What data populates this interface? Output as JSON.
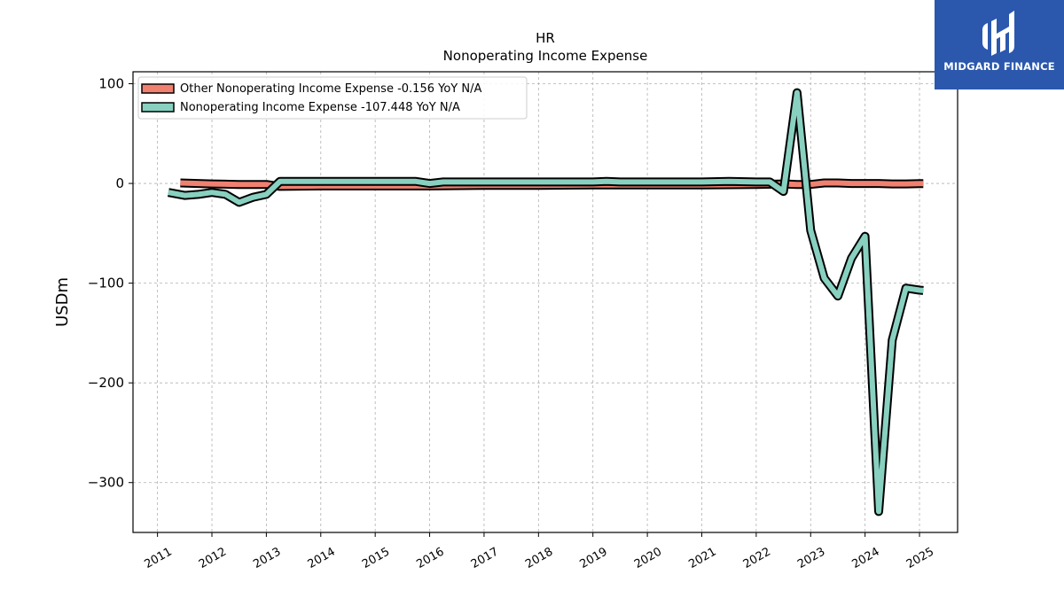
{
  "brand": {
    "name": "MIDGARD FINANCE",
    "bg_color": "#2b58ad"
  },
  "chart_data": {
    "type": "line",
    "title": "HR",
    "subtitle": "Nonoperating Income Expense",
    "ylabel": "USDm",
    "xlabel": "",
    "xlim": [
      2010.55,
      2025.7
    ],
    "ylim": [
      -350,
      112
    ],
    "yticks": [
      100,
      0,
      -100,
      -200,
      -300
    ],
    "ytick_labels": [
      "100",
      "0",
      "−100",
      "−200",
      "−300"
    ],
    "xticks": [
      2011,
      2012,
      2013,
      2014,
      2015,
      2016,
      2017,
      2018,
      2019,
      2020,
      2021,
      2022,
      2023,
      2024,
      2025
    ],
    "xtick_labels": [
      "2011",
      "2012",
      "2013",
      "2014",
      "2015",
      "2016",
      "2017",
      "2018",
      "2019",
      "2020",
      "2021",
      "2022",
      "2023",
      "2024",
      "2025"
    ],
    "grid": true,
    "legend_position": "top-left",
    "series": [
      {
        "name": "Other Nonoperating Income Expense",
        "legend_label": "Other Nonoperating Income Expense  -0.156 YoY N/A",
        "color": "#f08070",
        "x": [
          2011.42,
          2012.0,
          2012.5,
          2013.0,
          2013.25,
          2014.0,
          2015.0,
          2016.0,
          2017.0,
          2018.0,
          2019.0,
          2020.0,
          2021.0,
          2022.0,
          2022.5,
          2022.75,
          2023.0,
          2023.25,
          2023.5,
          2023.75,
          2024.0,
          2024.25,
          2024.5,
          2024.75,
          2025.0,
          2025.07
        ],
        "y": [
          0.5,
          -0.5,
          -1.0,
          -1.0,
          -3.0,
          -2.5,
          -2.5,
          -2.5,
          -2.0,
          -2.0,
          -1.5,
          -1.5,
          -1.5,
          -1.0,
          -0.5,
          -1.0,
          -1.0,
          0.5,
          0.5,
          0.0,
          0.0,
          0.0,
          -0.5,
          -0.5,
          -0.2,
          -0.2
        ]
      },
      {
        "name": "Nonoperating Income Expense",
        "legend_label": "Nonoperating Income Expense  -107.448 YoY N/A",
        "color": "#88d0c0",
        "x": [
          2011.2,
          2011.5,
          2011.75,
          2012.0,
          2012.25,
          2012.5,
          2012.75,
          2013.0,
          2013.25,
          2013.5,
          2014.0,
          2015.0,
          2015.75,
          2016.0,
          2016.25,
          2017.0,
          2018.0,
          2019.0,
          2019.25,
          2019.5,
          2020.0,
          2021.0,
          2021.5,
          2022.0,
          2022.25,
          2022.5,
          2022.75,
          2023.0,
          2023.25,
          2023.5,
          2023.75,
          2024.0,
          2024.25,
          2024.5,
          2024.75,
          2025.0,
          2025.07
        ],
        "y": [
          -9,
          -12,
          -11,
          -9,
          -11,
          -19,
          -14,
          -11,
          2,
          2,
          2,
          2,
          2,
          0,
          1.5,
          1.5,
          1.5,
          1.5,
          2,
          1.5,
          1.5,
          1.5,
          2,
          1.5,
          1.5,
          -8,
          91,
          -47,
          -95,
          -113,
          -75,
          -53,
          -329,
          -157,
          -105,
          -107,
          -107.4
        ]
      }
    ]
  }
}
